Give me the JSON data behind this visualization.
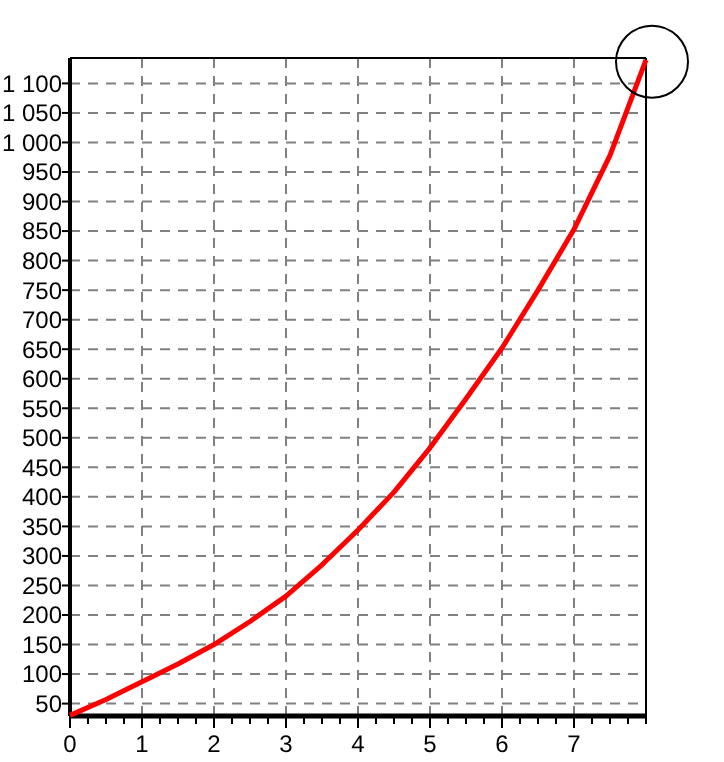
{
  "chart_data": {
    "type": "line",
    "x": [
      0,
      0.5,
      1,
      1.5,
      2,
      2.5,
      3,
      3.5,
      4,
      4.5,
      5,
      5.5,
      6,
      6.5,
      7,
      7.5,
      8
    ],
    "series": [
      {
        "color": "#ff0000",
        "values": [
          30,
          57,
          87,
          117,
          150,
          189,
          232,
          285,
          344,
          408,
          483,
          566,
          652,
          750,
          853,
          978,
          1140
        ]
      }
    ],
    "xlim": [
      0,
      8
    ],
    "xticks": [
      0,
      1,
      2,
      3,
      4,
      5,
      6,
      7
    ],
    "ylim": [
      29,
      1143
    ],
    "yticks": [
      50,
      100,
      150,
      200,
      250,
      300,
      350,
      400,
      450,
      500,
      550,
      600,
      650,
      700,
      750,
      800,
      850,
      900,
      950,
      {
        "value": 1000,
        "label": "1 000"
      },
      {
        "value": 1050,
        "label": "1 050"
      },
      {
        "value": 1100,
        "label": "1 100"
      }
    ],
    "grid": true,
    "marker": "none",
    "line_style": "solid"
  }
}
